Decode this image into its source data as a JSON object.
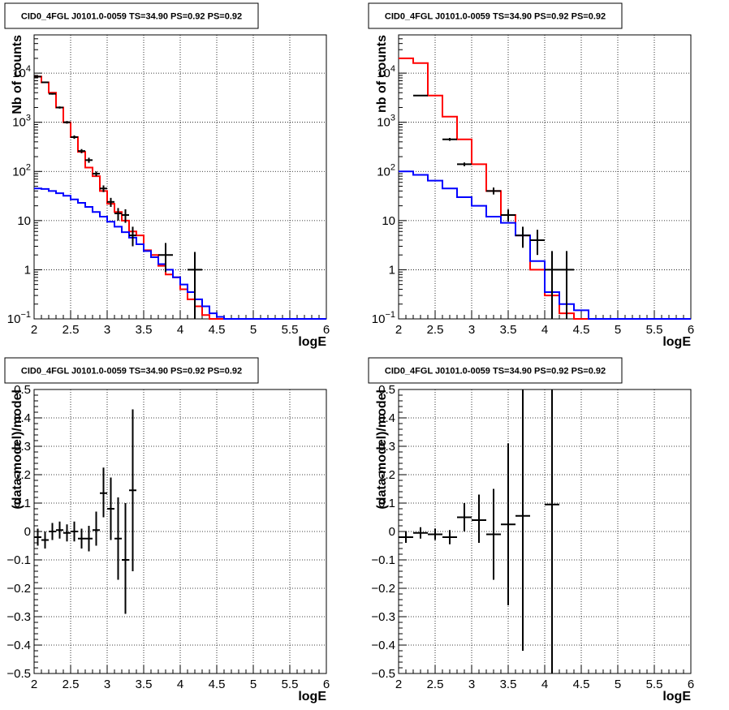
{
  "chart_data": [
    {
      "type": "line",
      "title": "CID0_4FGL J0101.0-0059 TS=34.90 PS=0.92 PS=0.92",
      "xlabel": "logE",
      "ylabel": "Nb of counts",
      "xlim": [
        2,
        6
      ],
      "ylim": [
        0.1,
        60000
      ],
      "yscale": "log",
      "grid": true,
      "x_ticks": [
        "2",
        "2.5",
        "3",
        "3.5",
        "4",
        "4.5",
        "5",
        "5.5",
        "6"
      ],
      "y_ticks": [
        {
          "v": 0.1,
          "label": "10",
          "exp": "−1"
        },
        {
          "v": 1,
          "label": "1",
          "exp": ""
        },
        {
          "v": 10,
          "label": "10",
          "exp": ""
        },
        {
          "v": 100,
          "label": "10",
          "exp": "2"
        },
        {
          "v": 1000,
          "label": "10",
          "exp": "3"
        },
        {
          "v": 10000,
          "label": "10",
          "exp": "4"
        }
      ],
      "series": [
        {
          "type": "hist",
          "color": "#ff0000",
          "edges_start": 2.0,
          "bin_width": 0.1,
          "values": [
            8500,
            6500,
            4000,
            2000,
            1000,
            500,
            250,
            120,
            80,
            40,
            22,
            15,
            10,
            6,
            5,
            2.5,
            2,
            1.2,
            0.8,
            0.7,
            0.4,
            0.25,
            0.18,
            0.12,
            0.1,
            0.1,
            0.1,
            0.1,
            0.1,
            0.1,
            0.1,
            0.1,
            0.1,
            0.1,
            0.1,
            0.1,
            0.1,
            0.1,
            0.1,
            0.1
          ]
        },
        {
          "type": "hist",
          "color": "#0000ff",
          "edges_start": 2.0,
          "bin_width": 0.1,
          "values": [
            45,
            44,
            40,
            36,
            32,
            27,
            23,
            19,
            15,
            12,
            9.5,
            7.5,
            5.8,
            4.5,
            3.3,
            2.4,
            1.8,
            1.3,
            1.0,
            0.7,
            0.5,
            0.35,
            0.25,
            0.18,
            0.13,
            0.11,
            0.1,
            0.1,
            0.1,
            0.1,
            0.1,
            0.1,
            0.1,
            0.1,
            0.1,
            0.1,
            0.1,
            0.1,
            0.1,
            0.1
          ]
        },
        {
          "type": "points",
          "color": "#000000",
          "points": [
            {
              "x": 2.05,
              "y": 8500,
              "xerr": 0.05,
              "lo": 8300,
              "hi": 8700
            },
            {
              "x": 2.15,
              "y": 6500,
              "xerr": 0.05,
              "lo": 6300,
              "hi": 6700
            },
            {
              "x": 2.25,
              "y": 3800,
              "xerr": 0.05,
              "lo": 3650,
              "hi": 3950
            },
            {
              "x": 2.35,
              "y": 2000,
              "xerr": 0.05,
              "lo": 1900,
              "hi": 2100
            },
            {
              "x": 2.45,
              "y": 1000,
              "xerr": 0.05,
              "lo": 940,
              "hi": 1060
            },
            {
              "x": 2.55,
              "y": 500,
              "xerr": 0.05,
              "lo": 460,
              "hi": 540
            },
            {
              "x": 2.65,
              "y": 260,
              "xerr": 0.05,
              "lo": 235,
              "hi": 285
            },
            {
              "x": 2.75,
              "y": 170,
              "xerr": 0.05,
              "lo": 150,
              "hi": 190
            },
            {
              "x": 2.85,
              "y": 90,
              "xerr": 0.05,
              "lo": 80,
              "hi": 100
            },
            {
              "x": 2.95,
              "y": 45,
              "xerr": 0.05,
              "lo": 38,
              "hi": 52
            },
            {
              "x": 3.05,
              "y": 24,
              "xerr": 0.05,
              "lo": 19,
              "hi": 29
            },
            {
              "x": 3.15,
              "y": 14,
              "xerr": 0.05,
              "lo": 10,
              "hi": 18
            },
            {
              "x": 3.25,
              "y": 13,
              "xerr": 0.05,
              "lo": 9,
              "hi": 17
            },
            {
              "x": 3.35,
              "y": 5,
              "xerr": 0.05,
              "lo": 3,
              "hi": 7.5
            },
            {
              "x": 3.8,
              "y": 2,
              "xerr": 0.1,
              "lo": 0.9,
              "hi": 3.5
            },
            {
              "x": 4.2,
              "y": 1,
              "xerr": 0.1,
              "lo": 0.1,
              "hi": 2.3
            }
          ]
        }
      ]
    },
    {
      "type": "line",
      "title": "CID0_4FGL J0101.0-0059 TS=34.90 PS=0.92 PS=0.92",
      "xlabel": "logE",
      "ylabel": "nb of counts",
      "xlim": [
        2,
        6
      ],
      "ylim": [
        0.1,
        60000
      ],
      "yscale": "log",
      "grid": true,
      "x_ticks": [
        "2",
        "2.5",
        "3",
        "3.5",
        "4",
        "4.5",
        "5",
        "5.5",
        "6"
      ],
      "y_ticks": [
        {
          "v": 0.1,
          "label": "10",
          "exp": "−1"
        },
        {
          "v": 1,
          "label": "1",
          "exp": ""
        },
        {
          "v": 10,
          "label": "10",
          "exp": ""
        },
        {
          "v": 100,
          "label": "10",
          "exp": "2"
        },
        {
          "v": 1000,
          "label": "10",
          "exp": "3"
        },
        {
          "v": 10000,
          "label": "10",
          "exp": "4"
        }
      ],
      "series": [
        {
          "type": "hist",
          "color": "#ff0000",
          "edges_start": 2.0,
          "bin_width": 0.2,
          "values": [
            20000,
            16000,
            3500,
            1300,
            450,
            140,
            40,
            13,
            5,
            1,
            0.3,
            0.13,
            0.1,
            0.1,
            0.1,
            0.1,
            0.1,
            0.1,
            0.1,
            0.1
          ]
        },
        {
          "type": "hist",
          "color": "#0000ff",
          "edges_start": 2.0,
          "bin_width": 0.2,
          "values": [
            100,
            85,
            65,
            45,
            30,
            20,
            12,
            9,
            5,
            1.5,
            0.35,
            0.2,
            0.15,
            0.1,
            0.1,
            0.1,
            0.1,
            0.1,
            0.1,
            0.1
          ]
        },
        {
          "type": "points",
          "color": "#000000",
          "points": [
            {
              "x": 2.3,
              "y": 3500,
              "xerr": 0.1,
              "lo": 3400,
              "hi": 3600
            },
            {
              "x": 2.7,
              "y": 450,
              "xerr": 0.1,
              "lo": 420,
              "hi": 480
            },
            {
              "x": 2.9,
              "y": 140,
              "xerr": 0.1,
              "lo": 128,
              "hi": 152
            },
            {
              "x": 3.3,
              "y": 40,
              "xerr": 0.1,
              "lo": 34,
              "hi": 47
            },
            {
              "x": 3.5,
              "y": 13,
              "xerr": 0.1,
              "lo": 9.5,
              "hi": 17
            },
            {
              "x": 3.7,
              "y": 5,
              "xerr": 0.1,
              "lo": 2.8,
              "hi": 7.5
            },
            {
              "x": 3.9,
              "y": 4,
              "xerr": 0.1,
              "lo": 2,
              "hi": 6.5
            },
            {
              "x": 4.1,
              "y": 1,
              "xerr": 0.1,
              "lo": 0.1,
              "hi": 2.4
            },
            {
              "x": 4.3,
              "y": 1,
              "xerr": 0.1,
              "lo": 0.1,
              "hi": 2.4
            }
          ]
        }
      ]
    },
    {
      "type": "scatter",
      "title": "CID0_4FGL J0101.0-0059 TS=34.90 PS=0.92 PS=0.92",
      "xlabel": "logE",
      "ylabel": "(data-model)/model",
      "xlim": [
        2,
        6
      ],
      "ylim": [
        -0.5,
        0.5
      ],
      "grid": true,
      "x_ticks": [
        "2",
        "2.5",
        "3",
        "3.5",
        "4",
        "4.5",
        "5",
        "5.5",
        "6"
      ],
      "y_ticks": [
        "−0.5",
        "−0.4",
        "−0.3",
        "−0.2",
        "−0.1",
        "0",
        "0.1",
        "0.2",
        "0.3",
        "0.4",
        "0.5"
      ],
      "y_tick_values": [
        -0.5,
        -0.4,
        -0.3,
        -0.2,
        -0.1,
        0,
        0.1,
        0.2,
        0.3,
        0.4,
        0.5
      ],
      "series": [
        {
          "type": "points",
          "color": "#000000",
          "points": [
            {
              "x": 2.05,
              "y": -0.02,
              "xerr": 0.05,
              "lo": -0.05,
              "hi": 0.01
            },
            {
              "x": 2.15,
              "y": -0.03,
              "xerr": 0.05,
              "lo": -0.06,
              "hi": 0.0
            },
            {
              "x": 2.25,
              "y": 0.0,
              "xerr": 0.05,
              "lo": -0.03,
              "hi": 0.03
            },
            {
              "x": 2.35,
              "y": 0.005,
              "xerr": 0.05,
              "lo": -0.025,
              "hi": 0.035
            },
            {
              "x": 2.45,
              "y": -0.005,
              "xerr": 0.05,
              "lo": -0.035,
              "hi": 0.025
            },
            {
              "x": 2.55,
              "y": 0.0,
              "xerr": 0.05,
              "lo": -0.035,
              "hi": 0.035
            },
            {
              "x": 2.65,
              "y": -0.025,
              "xerr": 0.05,
              "lo": -0.06,
              "hi": 0.01
            },
            {
              "x": 2.75,
              "y": -0.025,
              "xerr": 0.05,
              "lo": -0.07,
              "hi": 0.02
            },
            {
              "x": 2.85,
              "y": 0.005,
              "xerr": 0.05,
              "lo": -0.05,
              "hi": 0.07
            },
            {
              "x": 2.95,
              "y": 0.135,
              "xerr": 0.05,
              "lo": 0.05,
              "hi": 0.225
            },
            {
              "x": 3.05,
              "y": 0.08,
              "xerr": 0.05,
              "lo": -0.03,
              "hi": 0.19
            },
            {
              "x": 3.15,
              "y": -0.025,
              "xerr": 0.05,
              "lo": -0.17,
              "hi": 0.12
            },
            {
              "x": 3.25,
              "y": -0.1,
              "xerr": 0.05,
              "lo": -0.29,
              "hi": 0.1
            },
            {
              "x": 3.35,
              "y": 0.145,
              "xerr": 0.05,
              "lo": -0.14,
              "hi": 0.43
            }
          ]
        }
      ]
    },
    {
      "type": "scatter",
      "title": "CID0_4FGL J0101.0-0059 TS=34.90 PS=0.92 PS=0.92",
      "xlabel": "logE",
      "ylabel": "(data-model)/model",
      "xlim": [
        2,
        6
      ],
      "ylim": [
        -0.5,
        0.5
      ],
      "grid": true,
      "x_ticks": [
        "2",
        "2.5",
        "3",
        "3.5",
        "4",
        "4.5",
        "5",
        "5.5",
        "6"
      ],
      "y_ticks": [
        "−0.5",
        "−0.4",
        "−0.3",
        "−0.2",
        "−0.1",
        "0",
        "0.1",
        "0.2",
        "0.3",
        "0.4",
        "0.5"
      ],
      "y_tick_values": [
        -0.5,
        -0.4,
        -0.3,
        -0.2,
        -0.1,
        0,
        0.1,
        0.2,
        0.3,
        0.4,
        0.5
      ],
      "series": [
        {
          "type": "points",
          "color": "#000000",
          "points": [
            {
              "x": 2.1,
              "y": -0.02,
              "xerr": 0.1,
              "lo": -0.04,
              "hi": 0.0
            },
            {
              "x": 2.3,
              "y": -0.005,
              "xerr": 0.1,
              "lo": -0.025,
              "hi": 0.015
            },
            {
              "x": 2.5,
              "y": -0.01,
              "xerr": 0.1,
              "lo": -0.03,
              "hi": 0.01
            },
            {
              "x": 2.7,
              "y": -0.02,
              "xerr": 0.1,
              "lo": -0.045,
              "hi": 0.005
            },
            {
              "x": 2.9,
              "y": 0.05,
              "xerr": 0.1,
              "lo": 0.0,
              "hi": 0.1
            },
            {
              "x": 3.1,
              "y": 0.04,
              "xerr": 0.1,
              "lo": -0.04,
              "hi": 0.13
            },
            {
              "x": 3.3,
              "y": -0.01,
              "xerr": 0.1,
              "lo": -0.17,
              "hi": 0.15
            },
            {
              "x": 3.5,
              "y": 0.025,
              "xerr": 0.1,
              "lo": -0.26,
              "hi": 0.31
            },
            {
              "x": 3.7,
              "y": 0.055,
              "xerr": 0.1,
              "lo": -0.42,
              "hi": 0.5
            },
            {
              "x": 4.1,
              "y": 0.095,
              "xerr": 0.1,
              "lo": -0.5,
              "hi": 0.5
            }
          ]
        }
      ]
    }
  ]
}
